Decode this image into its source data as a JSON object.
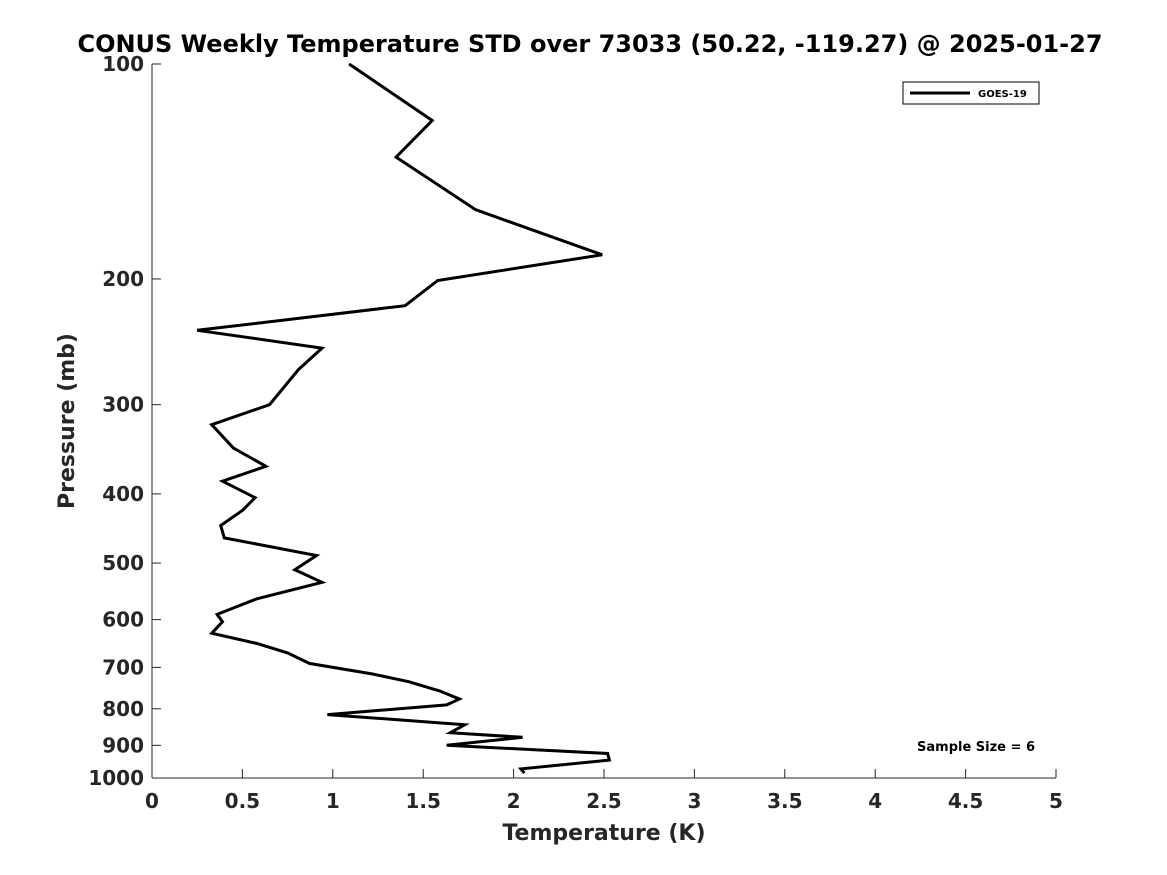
{
  "chart_data": {
    "type": "line",
    "title": "CONUS Weekly Temperature STD over 73033 (50.22, -119.27) @ 2025-01-27",
    "xlabel": "Temperature (K)",
    "ylabel": "Pressure (mb)",
    "xlim": [
      0,
      5
    ],
    "ylim": [
      100,
      1000
    ],
    "y_scale": "log",
    "y_reversed": true,
    "grid": false,
    "legend_position": "top-right",
    "x_ticks": [
      "0",
      "0.5",
      "1",
      "1.5",
      "2",
      "2.5",
      "3",
      "3.5",
      "4",
      "4.5",
      "5"
    ],
    "y_ticks": [
      "100",
      "200",
      "300",
      "400",
      "500",
      "600",
      "700",
      "800",
      "900",
      "1000"
    ],
    "annotation": "Sample Size = 6",
    "series": [
      {
        "name": "GOES-19",
        "color": "#000000",
        "x": [
          1.09,
          1.55,
          1.35,
          1.79,
          2.49,
          1.58,
          1.4,
          0.25,
          0.94,
          0.81,
          0.65,
          0.33,
          0.45,
          0.63,
          0.39,
          0.57,
          0.5,
          0.38,
          0.4,
          0.91,
          0.79,
          0.94,
          0.58,
          0.36,
          0.39,
          0.33,
          0.58,
          0.75,
          0.87,
          1.22,
          1.42,
          1.59,
          1.7,
          1.63,
          0.97,
          1.73,
          1.65,
          2.05,
          1.63,
          2.52,
          2.53,
          2.04,
          2.06
        ],
        "y": [
          100,
          120,
          135,
          160,
          185,
          201,
          218,
          236,
          250,
          268,
          300,
          320,
          345,
          366,
          384,
          405,
          422,
          443,
          461,
          488,
          511,
          532,
          561,
          590,
          604,
          627,
          648,
          668,
          691,
          715,
          733,
          755,
          775,
          790,
          815,
          842,
          864,
          877,
          900,
          924,
          944,
          971,
          984
        ]
      }
    ]
  }
}
